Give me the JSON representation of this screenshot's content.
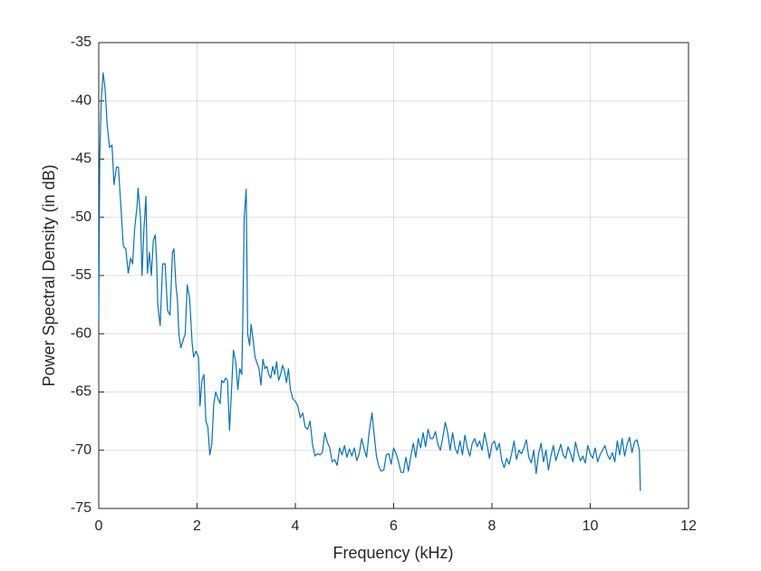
{
  "chart_data": {
    "type": "line",
    "xlabel": "Frequency (kHz)",
    "ylabel": "Power Spectral Density (in dB)",
    "color": "#0072bd",
    "grid": true,
    "xlim": [
      0,
      12
    ],
    "xticks": [
      0,
      2,
      4,
      6,
      8,
      10,
      12
    ],
    "ylim": [
      -75,
      -35
    ],
    "yticks": [
      -75,
      -70,
      -65,
      -60,
      -55,
      -50,
      -45,
      -40,
      -35
    ],
    "x": [
      0,
      0.02,
      0.05,
      0.09,
      0.13,
      0.17,
      0.22,
      0.27,
      0.31,
      0.36,
      0.4,
      0.45,
      0.5,
      0.55,
      0.6,
      0.65,
      0.69,
      0.73,
      0.78,
      0.8,
      0.85,
      0.88,
      0.92,
      0.96,
      0.99,
      1.03,
      1.07,
      1.11,
      1.15,
      1.18,
      1.2,
      1.25,
      1.3,
      1.35,
      1.4,
      1.45,
      1.5,
      1.53,
      1.57,
      1.6,
      1.63,
      1.67,
      1.72,
      1.76,
      1.8,
      1.85,
      1.9,
      1.93,
      1.98,
      2.03,
      2.06,
      2.1,
      2.14,
      2.18,
      2.22,
      2.26,
      2.3,
      2.34,
      2.38,
      2.42,
      2.47,
      2.5,
      2.54,
      2.58,
      2.62,
      2.66,
      2.7,
      2.74,
      2.79,
      2.83,
      2.87,
      2.91,
      2.93,
      2.96,
      3.0,
      3.03,
      3.07,
      3.1,
      3.14,
      3.18,
      3.22,
      3.26,
      3.3,
      3.34,
      3.38,
      3.42,
      3.46,
      3.5,
      3.54,
      3.58,
      3.62,
      3.66,
      3.7,
      3.74,
      3.78,
      3.82,
      3.86,
      3.9,
      3.95,
      4.0,
      4.05,
      4.1,
      4.15,
      4.2,
      4.25,
      4.3,
      4.35,
      4.4,
      4.45,
      4.5,
      4.55,
      4.6,
      4.65,
      4.7,
      4.75,
      4.8,
      4.85,
      4.9,
      4.95,
      5.0,
      5.05,
      5.1,
      5.15,
      5.2,
      5.25,
      5.3,
      5.35,
      5.4,
      5.45,
      5.5,
      5.56,
      5.6,
      5.65,
      5.7,
      5.75,
      5.8,
      5.85,
      5.9,
      5.95,
      6.0,
      6.05,
      6.1,
      6.15,
      6.2,
      6.25,
      6.3,
      6.35,
      6.4,
      6.45,
      6.5,
      6.55,
      6.6,
      6.65,
      6.7,
      6.75,
      6.8,
      6.85,
      6.9,
      6.95,
      7.0,
      7.05,
      7.1,
      7.15,
      7.2,
      7.25,
      7.3,
      7.35,
      7.4,
      7.45,
      7.5,
      7.55,
      7.6,
      7.65,
      7.7,
      7.75,
      7.8,
      7.85,
      7.9,
      7.95,
      8.0,
      8.05,
      8.1,
      8.15,
      8.2,
      8.25,
      8.3,
      8.35,
      8.4,
      8.45,
      8.5,
      8.55,
      8.6,
      8.65,
      8.7,
      8.75,
      8.8,
      8.85,
      8.9,
      8.95,
      9.0,
      9.05,
      9.1,
      9.15,
      9.2,
      9.25,
      9.3,
      9.35,
      9.4,
      9.45,
      9.5,
      9.55,
      9.6,
      9.65,
      9.7,
      9.75,
      9.8,
      9.85,
      9.9,
      9.95,
      10.0,
      10.05,
      10.1,
      10.15,
      10.2,
      10.25,
      10.3,
      10.35,
      10.4,
      10.45,
      10.5,
      10.55,
      10.6,
      10.65,
      10.7,
      10.75,
      10.8,
      10.85,
      10.9,
      10.95,
      11.0,
      11.02
    ],
    "values": [
      -59,
      -45,
      -40,
      -37.6,
      -39,
      -42,
      -44,
      -43.8,
      -47.2,
      -45.7,
      -45.7,
      -49,
      -52.5,
      -52.7,
      -54.8,
      -53.5,
      -54,
      -51,
      -49,
      -47.5,
      -50,
      -55,
      -51,
      -48.2,
      -54.8,
      -53,
      -55,
      -52,
      -51.5,
      -54,
      -57.5,
      -59.3,
      -54,
      -54,
      -58,
      -58.4,
      -53,
      -52.7,
      -55.8,
      -57,
      -60,
      -61.2,
      -60.5,
      -60,
      -55.8,
      -57,
      -60.8,
      -62,
      -61.5,
      -62,
      -66.2,
      -64,
      -63.5,
      -67.5,
      -68,
      -70.4,
      -69.5,
      -66,
      -65,
      -65.5,
      -66,
      -64,
      -64.2,
      -63.8,
      -64,
      -68.3,
      -65,
      -61.4,
      -62.5,
      -64.8,
      -63,
      -63.5,
      -59,
      -50,
      -47.6,
      -60,
      -61,
      -59.2,
      -60.5,
      -62,
      -62.5,
      -63,
      -64.4,
      -62.2,
      -63,
      -62.8,
      -63.5,
      -63.8,
      -62.8,
      -63.5,
      -62.4,
      -64,
      -63.5,
      -62.7,
      -63.2,
      -64.2,
      -63,
      -64.8,
      -65.6,
      -65.8,
      -66.2,
      -67.2,
      -66.8,
      -68,
      -68.2,
      -67.5,
      -69.5,
      -70.5,
      -70.3,
      -70.4,
      -70.2,
      -68.5,
      -69.3,
      -69.8,
      -71,
      -70.8,
      -71.3,
      -69.8,
      -70.4,
      -69.6,
      -70.6,
      -69.9,
      -70.5,
      -69.8,
      -70.9,
      -70.3,
      -69,
      -69.9,
      -70.6,
      -68.5,
      -66.8,
      -68.5,
      -70.5,
      -71.4,
      -71.8,
      -71.7,
      -70.4,
      -70.3,
      -71.2,
      -69.8,
      -70.3,
      -71,
      -71.9,
      -71.9,
      -70.6,
      -71.8,
      -70.5,
      -69.4,
      -70.6,
      -69,
      -69.8,
      -68.5,
      -69.7,
      -68.2,
      -69,
      -69,
      -68.4,
      -69.5,
      -70,
      -68.9,
      -67.6,
      -68.5,
      -70,
      -68.5,
      -69.8,
      -70.3,
      -69.2,
      -70.4,
      -68.7,
      -69.8,
      -70.5,
      -69.4,
      -69,
      -69.7,
      -69.2,
      -70,
      -68.5,
      -69.5,
      -70.7,
      -69.5,
      -69.2,
      -70,
      -69.4,
      -70.9,
      -71.5,
      -70.7,
      -71.2,
      -70.3,
      -69.2,
      -70.8,
      -70,
      -70.3,
      -69.8,
      -69.1,
      -70.6,
      -71.1,
      -70,
      -72,
      -70.3,
      -69.4,
      -71,
      -70,
      -71.7,
      -70.5,
      -69.6,
      -70.9,
      -70.2,
      -69.5,
      -70.4,
      -70.7,
      -69.7,
      -70.3,
      -71,
      -69.3,
      -70.2,
      -70.9,
      -70.5,
      -71.1,
      -69.6,
      -70.3,
      -70.7,
      -69.8,
      -71,
      -70.4,
      -70,
      -69.6,
      -70.4,
      -70.8,
      -70.2,
      -71,
      -69.2,
      -70.4,
      -69,
      -70.5,
      -69.5,
      -68.9,
      -70.2,
      -69.3,
      -69.1,
      -70,
      -73.5
    ]
  }
}
